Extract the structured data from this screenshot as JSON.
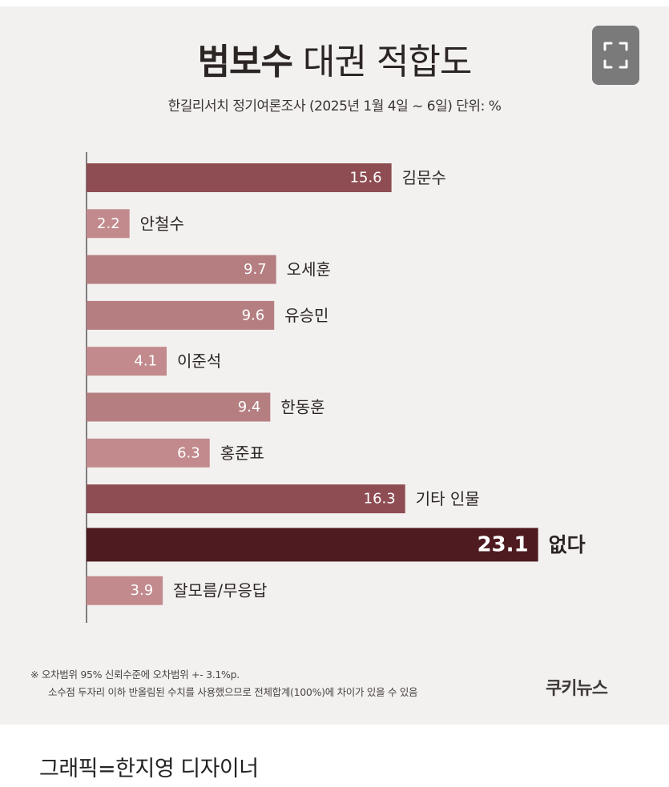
{
  "header": {
    "title_bold": "범보수",
    "title_rest": "대권 적합도",
    "subtitle": "한길리서치 정기여론조사 (2025년 1월 4일 ~ 6일) 단위: %"
  },
  "chart_data": {
    "type": "bar",
    "orientation": "horizontal",
    "title": "범보수 대권 적합도",
    "subtitle": "한길리서치 정기여론조사 (2025년 1월 4일 ~ 6일) 단위: %",
    "categories": [
      "김문수",
      "안철수",
      "오세훈",
      "유승민",
      "이준석",
      "한동훈",
      "홍준표",
      "기타 인물",
      "없다",
      "잘모름/무응답"
    ],
    "values": [
      15.6,
      2.2,
      9.7,
      9.6,
      4.1,
      9.4,
      6.3,
      16.3,
      23.1,
      3.9
    ],
    "value_labels": [
      "15.6",
      "2.2",
      "9.7",
      "9.6",
      "4.1",
      "9.4",
      "6.3",
      "16.3",
      "23.1",
      "3.9"
    ],
    "colors": [
      "#8e4d53",
      "#c28a8d",
      "#b57f82",
      "#b57f82",
      "#c28a8d",
      "#b57f82",
      "#c28a8d",
      "#8e4d53",
      "#4e1b20",
      "#c28a8d"
    ],
    "highlight_index": 8,
    "xlim": [
      0,
      23.1
    ],
    "grid": false,
    "legend": "none"
  },
  "footnote": {
    "line1": "※ 오차범위 95% 신뢰수준에 오차범위 +- 3.1%p.",
    "line2": "소수점 두자리 이하 반올림된 수치를 사용했으므로 전체합계(100%)에 차이가 있을 수 있음"
  },
  "brand": "쿠키뉴스",
  "caption": "그래픽=한지영 디자이너",
  "icons": {
    "expand": "expand-icon"
  }
}
